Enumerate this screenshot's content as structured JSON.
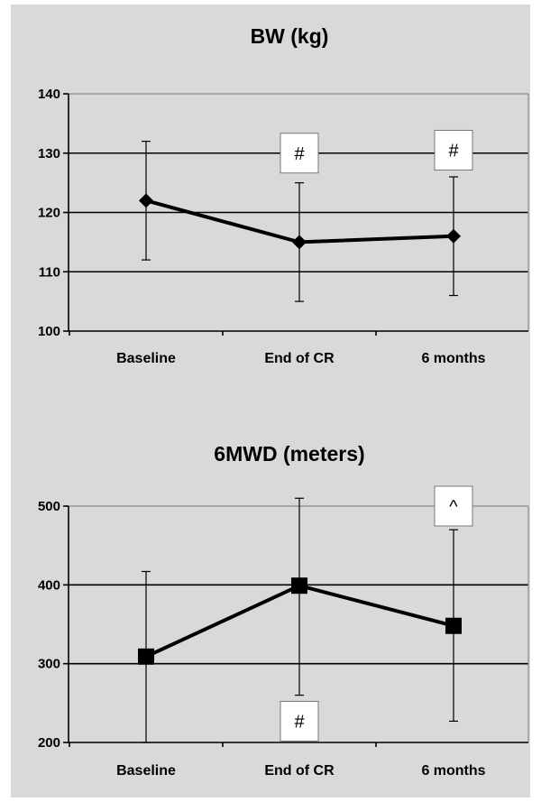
{
  "chart_data": [
    {
      "type": "line",
      "title": "BW (kg)",
      "categories": [
        "Baseline",
        "End of CR",
        "6 months"
      ],
      "values": [
        122,
        115,
        116
      ],
      "error_low": [
        112,
        105,
        106
      ],
      "error_high": [
        132,
        125,
        126
      ],
      "ylim": [
        100,
        140
      ],
      "yticks": [
        100,
        110,
        120,
        130,
        140
      ],
      "marker": "diamond",
      "grid": true,
      "annotations": [
        {
          "category": "End of CR",
          "y": 130,
          "text": "#"
        },
        {
          "category": "6 months",
          "y": 130.5,
          "text": "#"
        }
      ]
    },
    {
      "type": "line",
      "title": "6MWD (meters)",
      "categories": [
        "Baseline",
        "End of CR",
        "6 months"
      ],
      "values": [
        309,
        399,
        348
      ],
      "error_low": [
        200,
        260,
        227
      ],
      "error_high": [
        417,
        510,
        470
      ],
      "ylim": [
        200,
        500
      ],
      "yticks": [
        200,
        300,
        400,
        500
      ],
      "marker": "square",
      "grid": true,
      "annotations": [
        {
          "category": "6 months",
          "y": 500,
          "text": "^"
        },
        {
          "category": "End of CR",
          "y": 227,
          "text": "#"
        }
      ]
    }
  ]
}
